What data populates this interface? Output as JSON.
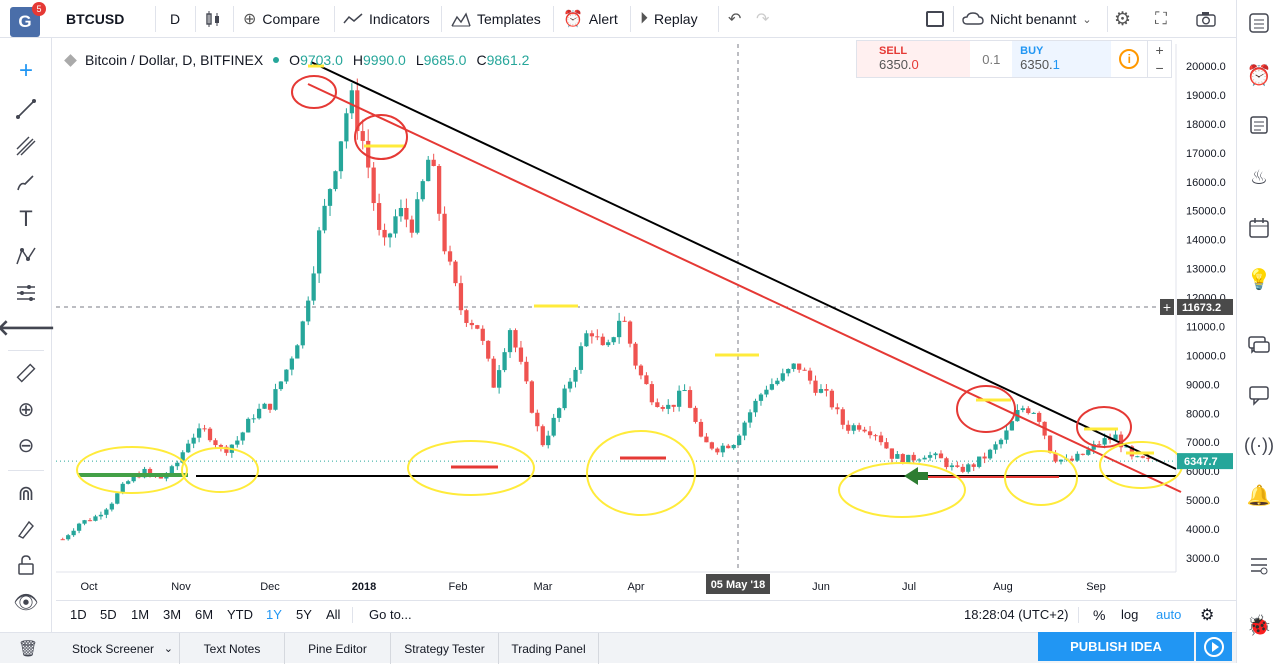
{
  "app": {
    "badge_count": "5",
    "logo_letter": "G"
  },
  "toolbar": {
    "symbol": "BTCUSD",
    "interval": "D",
    "compare": "Compare",
    "indicators": "Indicators",
    "templates": "Templates",
    "alert": "Alert",
    "replay": "Replay",
    "layout_name": "Nicht benannt"
  },
  "legend": {
    "title": "Bitcoin / Dollar, D, BITFINEX",
    "o_label": "O",
    "o": "9703.0",
    "h_label": "H",
    "h": "9990.0",
    "l_label": "L",
    "l": "9685.0",
    "c_label": "C",
    "c": "9861.2"
  },
  "trade": {
    "sell_label": "SELL",
    "sell_main": "6350.",
    "sell_frac": "0",
    "spread": "0.1",
    "buy_label": "BUY",
    "buy_main": "6350.",
    "buy_frac": "1"
  },
  "chart_data": {
    "type": "candlestick",
    "symbol": "BTCUSD",
    "ylim": [
      2500,
      21000
    ],
    "y_ticks": [
      "3000.0",
      "4000.0",
      "5000.0",
      "6000.0",
      "7000.0",
      "8000.0",
      "9000.0",
      "10000.0",
      "11000.0",
      "12000.0",
      "13000.0",
      "14000.0",
      "15000.0",
      "16000.0",
      "17000.0",
      "18000.0",
      "19000.0",
      "20000.0"
    ],
    "x_ticks": [
      "Oct",
      "Nov",
      "Dec",
      "2018",
      "Feb",
      "Mar",
      "Apr",
      "05 May '18",
      "Jun",
      "Jul",
      "Aug",
      "Sep"
    ],
    "crosshair_price": "11673.2",
    "last_price": "6347.7",
    "close_path": [
      3650,
      4200,
      4400,
      4900,
      5600,
      6000,
      5700,
      6100,
      7200,
      7400,
      6700,
      7100,
      8000,
      8300,
      9500,
      11000,
      14000,
      16500,
      19000,
      17000,
      13500,
      15000,
      14500,
      17000,
      13500,
      11500,
      11000,
      9000,
      11000,
      9000,
      6900,
      8000,
      9500,
      11000,
      10000,
      11500,
      9500,
      8500,
      8200,
      8800,
      7000,
      6800,
      7000,
      8000,
      8900,
      9200,
      9700,
      9000,
      8500,
      7500,
      7600,
      7300,
      6500,
      6400,
      6600,
      6400,
      6000,
      6200,
      6600,
      7200,
      8200,
      8100,
      6500,
      6300,
      6600,
      7000,
      7200,
      6400,
      6350
    ]
  },
  "bottom": {
    "ranges": [
      "1D",
      "5D",
      "1M",
      "3M",
      "6M",
      "YTD",
      "1Y",
      "5Y",
      "All"
    ],
    "active_range": "1Y",
    "goto": "Go to...",
    "time": "18:28:04 (UTC+2)",
    "pct": "%",
    "log": "log",
    "auto": "auto"
  },
  "panels": {
    "tabs": [
      "Stock Screener",
      "Text Notes",
      "Pine Editor",
      "Strategy Tester",
      "Trading Panel"
    ],
    "publish": "PUBLISH IDEA"
  },
  "colors": {
    "up": "#26a69a",
    "down": "#ef5350",
    "accent": "#2196f3"
  }
}
